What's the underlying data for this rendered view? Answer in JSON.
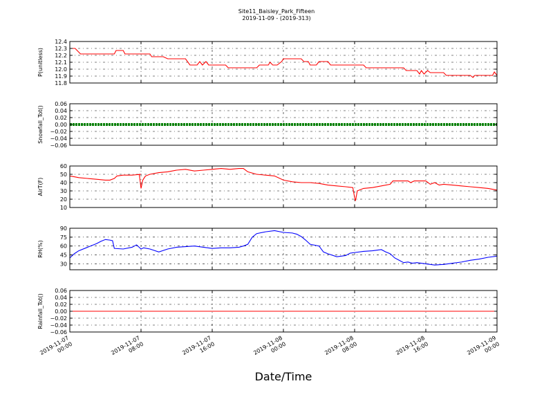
{
  "figure": {
    "title_line1": "Site11_Baisley_Park_Fifteen",
    "title_line2": "2019-11-09 - (2019-313)",
    "xlabel": "Date/Time"
  },
  "chart_data": {
    "type": "line",
    "x_ticks": [
      {
        "line1": "2019-11-07",
        "line2": "00:00",
        "hour": 0
      },
      {
        "line1": "2019-11-07",
        "line2": "08:00",
        "hour": 8
      },
      {
        "line1": "2019-11-07",
        "line2": "16:00",
        "hour": 16
      },
      {
        "line1": "2019-11-08",
        "line2": "00:00",
        "hour": 24
      },
      {
        "line1": "2019-11-08",
        "line2": "08:00",
        "hour": 32
      },
      {
        "line1": "2019-11-08",
        "line2": "16:00",
        "hour": 40
      },
      {
        "line1": "2019-11-09",
        "line2": "00:00",
        "hour": 48
      }
    ],
    "x_range_hours": [
      0,
      48
    ],
    "grid": true,
    "panels": [
      {
        "ylabel": "P(unitless)",
        "ylim": [
          11.8,
          12.4
        ],
        "yticks": [
          "12.4",
          "12.3",
          "12.2",
          "12.1",
          "12.0",
          "11.9",
          "11.8"
        ],
        "ytick_values": [
          12.4,
          12.3,
          12.2,
          12.1,
          12.0,
          11.9,
          11.8
        ],
        "color": "#ff0000",
        "points": [
          [
            0,
            12.3
          ],
          [
            0.6,
            12.3
          ],
          [
            1.2,
            12.22
          ],
          [
            3,
            12.22
          ],
          [
            5,
            12.22
          ],
          [
            5.2,
            12.27
          ],
          [
            6,
            12.27
          ],
          [
            6.2,
            12.22
          ],
          [
            9,
            12.22
          ],
          [
            9.2,
            12.18
          ],
          [
            10.5,
            12.18
          ],
          [
            11,
            12.15
          ],
          [
            13,
            12.15
          ],
          [
            13.5,
            12.06
          ],
          [
            14.3,
            12.06
          ],
          [
            14.6,
            12.11
          ],
          [
            14.9,
            12.06
          ],
          [
            15.3,
            12.11
          ],
          [
            15.6,
            12.06
          ],
          [
            17.5,
            12.06
          ],
          [
            17.8,
            12.02
          ],
          [
            21,
            12.02
          ],
          [
            21.3,
            12.06
          ],
          [
            22.3,
            12.06
          ],
          [
            22.5,
            12.1
          ],
          [
            22.8,
            12.06
          ],
          [
            23.3,
            12.06
          ],
          [
            23.8,
            12.11
          ],
          [
            24,
            12.15
          ],
          [
            26,
            12.15
          ],
          [
            26.3,
            12.11
          ],
          [
            26.8,
            12.11
          ],
          [
            27,
            12.06
          ],
          [
            27.7,
            12.06
          ],
          [
            28,
            12.11
          ],
          [
            29,
            12.11
          ],
          [
            29.3,
            12.06
          ],
          [
            32,
            12.06
          ],
          [
            33,
            12.06
          ],
          [
            33.3,
            12.02
          ],
          [
            37.5,
            12.02
          ],
          [
            37.8,
            11.98
          ],
          [
            39,
            11.98
          ],
          [
            39.3,
            11.93
          ],
          [
            39.5,
            11.98
          ],
          [
            39.8,
            11.93
          ],
          [
            40.2,
            11.98
          ],
          [
            40.5,
            11.95
          ],
          [
            42,
            11.95
          ],
          [
            42.3,
            11.91
          ],
          [
            45,
            11.91
          ],
          [
            45.3,
            11.88
          ],
          [
            45.5,
            11.91
          ],
          [
            47.5,
            11.91
          ],
          [
            47.7,
            11.96
          ],
          [
            48,
            11.91
          ]
        ]
      },
      {
        "ylabel": "Snowfall_Tot()",
        "ylim": [
          -0.06,
          0.06
        ],
        "yticks": [
          "0.06",
          "0.04",
          "0.02",
          "0.00",
          "−0.02",
          "−0.04",
          "−0.06"
        ],
        "ytick_values": [
          0.06,
          0.04,
          0.02,
          0.0,
          -0.02,
          -0.04,
          -0.06
        ],
        "color": "#008000",
        "thick": true,
        "points": [
          [
            0,
            0
          ],
          [
            48,
            0
          ]
        ]
      },
      {
        "ylabel": "AirT(F)",
        "ylim": [
          10,
          60
        ],
        "yticks": [
          "60",
          "50",
          "40",
          "30",
          "20",
          "10"
        ],
        "ytick_values": [
          60,
          50,
          40,
          30,
          20,
          10
        ],
        "color": "#ff0000",
        "points": [
          [
            0,
            48
          ],
          [
            0.5,
            47
          ],
          [
            1,
            46
          ],
          [
            2,
            45
          ],
          [
            3,
            44
          ],
          [
            4,
            43
          ],
          [
            4.5,
            43
          ],
          [
            5,
            45
          ],
          [
            5.3,
            48
          ],
          [
            6,
            49
          ],
          [
            7,
            49
          ],
          [
            8,
            50
          ],
          [
            7.8,
            50
          ],
          [
            7.9,
            42
          ],
          [
            8,
            33
          ],
          [
            8.2,
            43
          ],
          [
            8.5,
            48
          ],
          [
            9,
            50
          ],
          [
            10,
            52
          ],
          [
            11,
            53
          ],
          [
            12,
            55
          ],
          [
            13,
            56
          ],
          [
            14,
            54
          ],
          [
            15,
            55
          ],
          [
            16,
            56
          ],
          [
            17,
            57
          ],
          [
            18,
            56
          ],
          [
            19,
            57
          ],
          [
            19.5,
            57
          ],
          [
            20,
            53
          ],
          [
            21,
            50
          ],
          [
            22,
            49
          ],
          [
            23,
            48
          ],
          [
            24,
            43
          ],
          [
            25,
            41
          ],
          [
            26,
            40
          ],
          [
            27,
            40
          ],
          [
            28,
            39
          ],
          [
            29,
            37
          ],
          [
            30,
            36
          ],
          [
            31,
            35
          ],
          [
            31.8,
            34
          ],
          [
            32,
            22
          ],
          [
            32.1,
            18
          ],
          [
            32.3,
            30
          ],
          [
            33,
            33
          ],
          [
            34,
            34
          ],
          [
            35,
            36
          ],
          [
            36,
            38
          ],
          [
            36.3,
            42
          ],
          [
            37,
            42
          ],
          [
            38,
            42
          ],
          [
            38.3,
            40
          ],
          [
            38.7,
            42
          ],
          [
            40,
            42
          ],
          [
            40.5,
            38
          ],
          [
            41,
            40
          ],
          [
            41.5,
            37
          ],
          [
            42,
            38
          ],
          [
            43,
            37
          ],
          [
            44,
            36
          ],
          [
            45,
            35
          ],
          [
            46,
            34
          ],
          [
            47,
            33
          ],
          [
            48,
            31
          ]
        ]
      },
      {
        "ylabel": "RH(%)",
        "ylim": [
          20,
          90
        ],
        "yticks": [
          "90",
          "75",
          "60",
          "45",
          "30"
        ],
        "ytick_values": [
          90,
          75,
          60,
          45,
          30
        ],
        "color": "#0000ff",
        "points": [
          [
            0,
            40
          ],
          [
            0.5,
            47
          ],
          [
            1,
            52
          ],
          [
            2,
            58
          ],
          [
            3,
            64
          ],
          [
            3.5,
            68
          ],
          [
            4,
            71
          ],
          [
            4.5,
            70
          ],
          [
            4.8,
            69
          ],
          [
            5,
            56
          ],
          [
            6,
            55
          ],
          [
            7,
            58
          ],
          [
            7.5,
            62
          ],
          [
            8,
            55
          ],
          [
            8.3,
            57
          ],
          [
            9,
            55
          ],
          [
            10,
            50
          ],
          [
            11,
            55
          ],
          [
            12,
            58
          ],
          [
            13,
            59
          ],
          [
            14,
            60
          ],
          [
            15,
            58
          ],
          [
            16,
            56
          ],
          [
            17,
            57
          ],
          [
            18,
            57
          ],
          [
            19,
            58
          ],
          [
            19.5,
            60
          ],
          [
            20,
            63
          ],
          [
            20.5,
            75
          ],
          [
            21,
            81
          ],
          [
            22,
            84
          ],
          [
            23,
            86
          ],
          [
            24,
            83
          ],
          [
            25,
            82
          ],
          [
            25.5,
            80
          ],
          [
            26,
            76
          ],
          [
            26.5,
            70
          ],
          [
            27,
            63
          ],
          [
            28,
            60
          ],
          [
            28.5,
            50
          ],
          [
            29,
            47
          ],
          [
            30,
            42
          ],
          [
            31,
            44
          ],
          [
            31.5,
            48
          ],
          [
            32,
            49
          ],
          [
            33,
            51
          ],
          [
            34,
            52
          ],
          [
            35,
            54
          ],
          [
            35.5,
            50
          ],
          [
            36,
            47
          ],
          [
            36.5,
            40
          ],
          [
            37,
            36
          ],
          [
            37.5,
            32
          ],
          [
            38,
            33
          ],
          [
            38.5,
            31
          ],
          [
            39,
            32
          ],
          [
            40,
            30
          ],
          [
            41,
            28
          ],
          [
            42,
            29
          ],
          [
            43,
            31
          ],
          [
            44,
            33
          ],
          [
            45,
            36
          ],
          [
            46,
            38
          ],
          [
            47,
            41
          ],
          [
            48,
            43
          ]
        ]
      },
      {
        "ylabel": "Rainfall_Tot()",
        "ylim": [
          -0.06,
          0.06
        ],
        "yticks": [
          "0.06",
          "0.04",
          "0.02",
          "0.00",
          "−0.02",
          "−0.04",
          "−0.06"
        ],
        "ytick_values": [
          0.06,
          0.04,
          0.02,
          0.0,
          -0.02,
          -0.04,
          -0.06
        ],
        "color": "#ff0000",
        "points": [
          [
            0,
            0
          ],
          [
            48,
            0
          ]
        ]
      }
    ]
  }
}
